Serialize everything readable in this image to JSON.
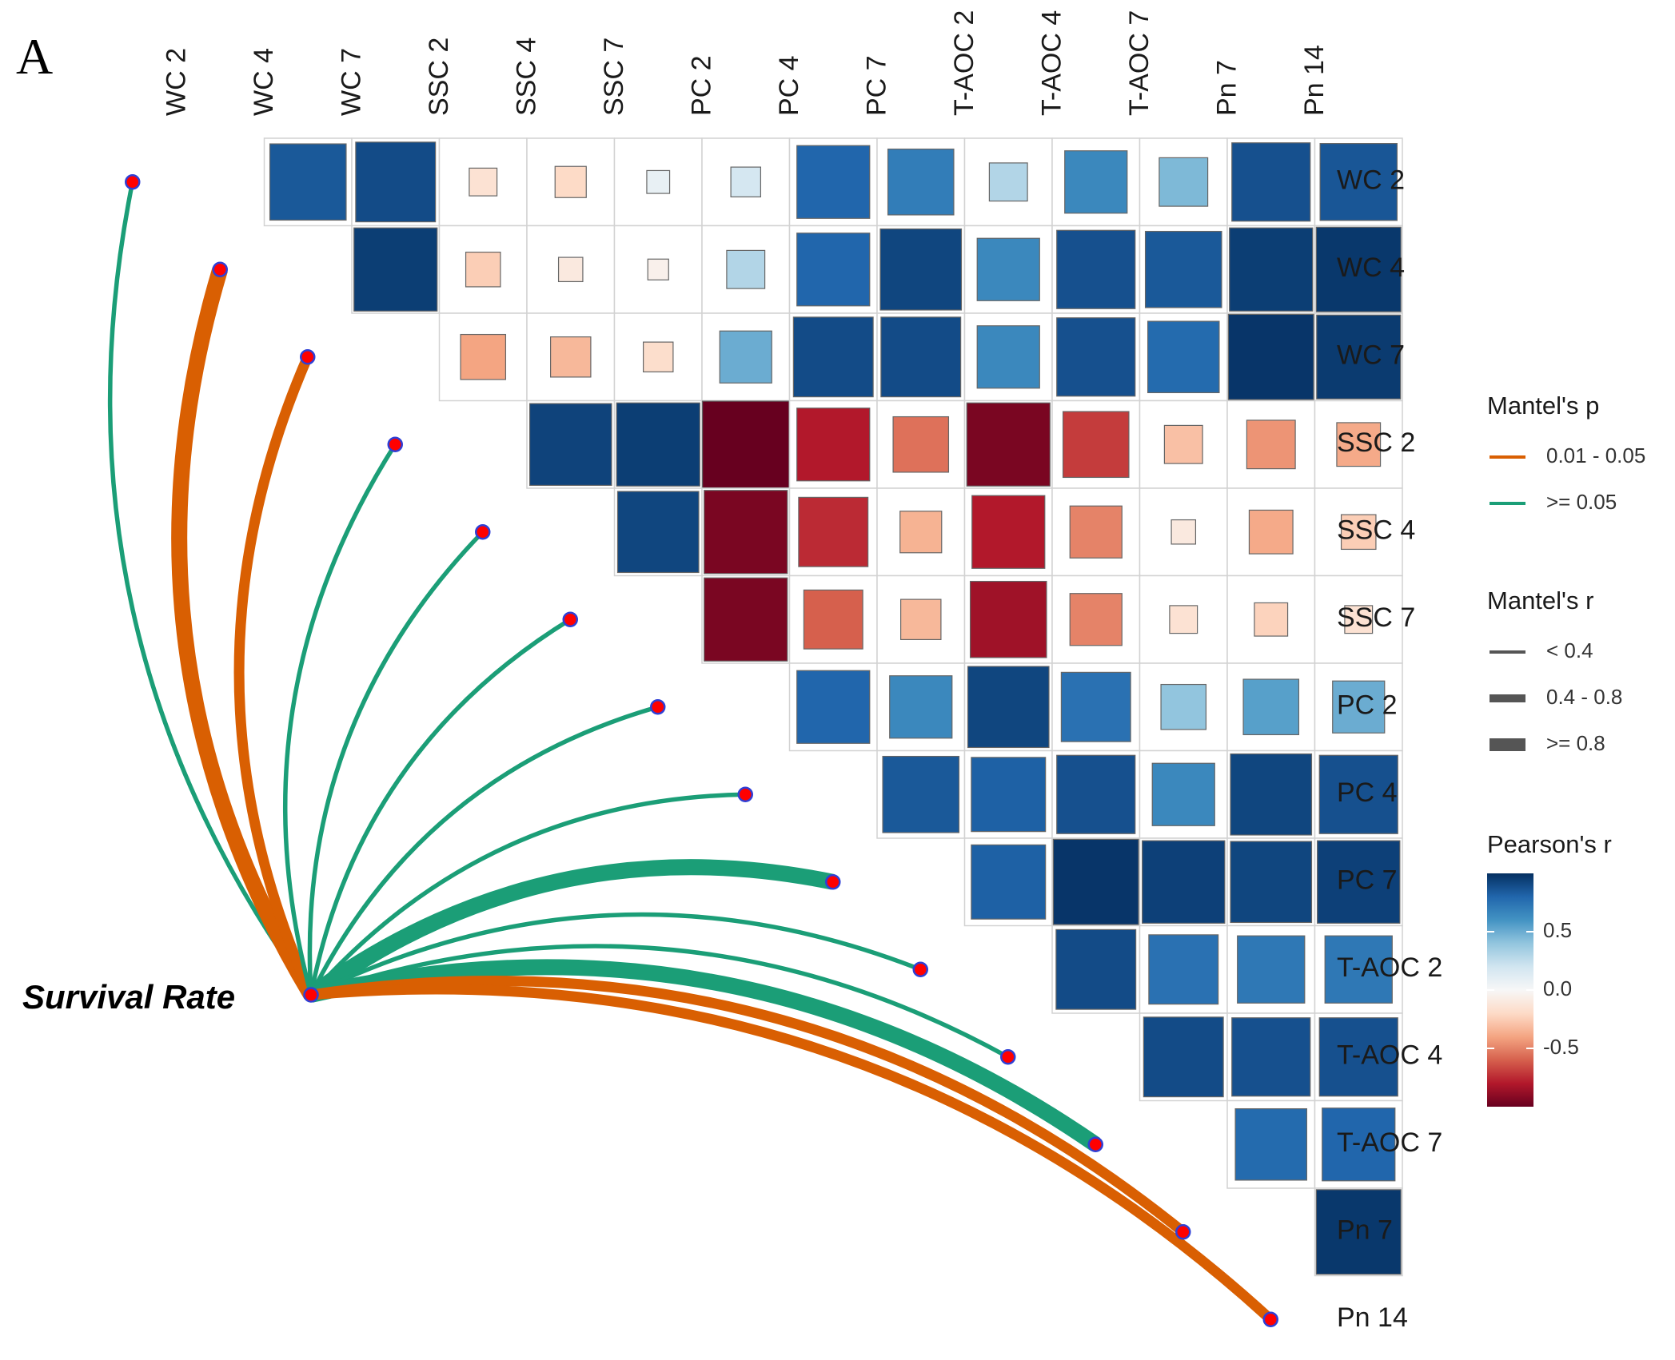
{
  "panel_label": "A",
  "chart_data": {
    "type": "heatmap",
    "title": "",
    "variables": [
      "WC 2",
      "WC 4",
      "WC 7",
      "SSC 2",
      "SSC 4",
      "SSC 7",
      "PC 2",
      "PC 4",
      "PC 7",
      "T-AOC 2",
      "T-AOC 4",
      "T-AOC 7",
      "Pn 7",
      "Pn 14"
    ],
    "pearson_r_upper": [
      [
        0.85,
        0.9,
        -0.15,
        -0.2,
        0.08,
        0.18,
        0.8,
        0.7,
        0.3,
        0.65,
        0.45,
        0.88,
        0.86
      ],
      [
        0.95,
        -0.25,
        -0.1,
        -0.05,
        0.3,
        0.8,
        0.92,
        0.65,
        0.88,
        0.85,
        0.95,
        0.97
      ],
      [
        -0.4,
        -0.33,
        -0.18,
        0.5,
        0.9,
        0.9,
        0.65,
        0.88,
        0.78,
        0.98,
        0.96
      ],
      [
        0.93,
        0.95,
        -1.0,
        -0.8,
        -0.55,
        -0.95,
        -0.7,
        -0.3,
        -0.45,
        -0.38
      ],
      [
        0.92,
        -0.95,
        -0.75,
        -0.35,
        -0.8,
        -0.5,
        -0.1,
        -0.38,
        -0.25
      ],
      [
        -0.95,
        -0.6,
        -0.33,
        -0.85,
        -0.5,
        -0.15,
        -0.23,
        -0.15
      ],
      [
        0.8,
        0.65,
        0.92,
        0.75,
        0.4,
        0.55,
        0.5
      ],
      [
        0.85,
        0.82,
        0.88,
        0.65,
        0.92,
        0.88
      ],
      [
        0.82,
        0.98,
        0.94,
        0.92,
        0.94
      ],
      [
        0.9,
        0.75,
        0.72,
        0.72
      ],
      [
        0.9,
        0.88,
        0.88
      ],
      [
        0.78,
        0.8
      ],
      [
        0.97
      ]
    ],
    "mantel": {
      "source": "Survival Rate",
      "targets": [
        "WC 2",
        "WC 4",
        "WC 7",
        "SSC 2",
        "SSC 4",
        "SSC 7",
        "PC 2",
        "PC 4",
        "PC 7",
        "T-AOC 2",
        "T-AOC 4",
        "T-AOC 7",
        "Pn 7",
        "Pn 14"
      ],
      "p_class": [
        ">= 0.05",
        "0.01 - 0.05",
        "0.01 - 0.05",
        ">= 0.05",
        ">= 0.05",
        ">= 0.05",
        ">= 0.05",
        ">= 0.05",
        ">= 0.05",
        ">= 0.05",
        ">= 0.05",
        ">= 0.05",
        "0.01 - 0.05",
        "0.01 - 0.05"
      ],
      "r_class": [
        "< 0.4",
        ">= 0.8",
        "0.4 - 0.8",
        "< 0.4",
        "< 0.4",
        "< 0.4",
        "< 0.4",
        "< 0.4",
        ">= 0.8",
        "< 0.4",
        "< 0.4",
        ">= 0.8",
        "0.4 - 0.8",
        "0.4 - 0.8"
      ]
    },
    "legend": {
      "mantel_p": {
        "title": "Mantel's p",
        "entries": [
          {
            "label": "0.01 - 0.05",
            "color": "#d95f02"
          },
          {
            "label": ">= 0.05",
            "color": "#1b9e77"
          }
        ]
      },
      "mantel_r": {
        "title": "Mantel's r",
        "entries": [
          "< 0.4",
          "0.4 - 0.8",
          ">= 0.8"
        ]
      },
      "pearson_r": {
        "title": "Pearson's r",
        "ticks": [
          {
            "value": 0.5,
            "label": "0.5"
          },
          {
            "value": 0.0,
            "label": "0.0"
          },
          {
            "value": -0.5,
            "label": "-0.5"
          }
        ],
        "range": [
          -1,
          1
        ]
      }
    }
  }
}
